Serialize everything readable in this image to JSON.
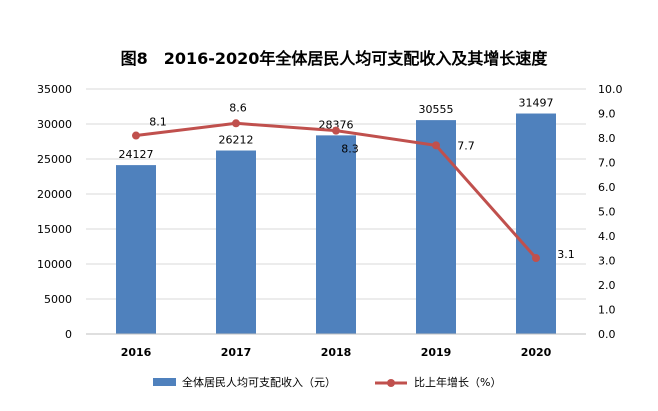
{
  "chart_data": {
    "type": "bar",
    "title": "图8　2016-2020年全体居民人均可支配收入及其增长速度",
    "categories": [
      "2016",
      "2017",
      "2018",
      "2019",
      "2020"
    ],
    "series": [
      {
        "name": "全体居民人均可支配收入（元）",
        "type": "bar",
        "axis": "left",
        "values": [
          24127,
          26212,
          28376,
          30555,
          31497
        ],
        "color": "#4f81bd"
      },
      {
        "name": "比上年增长（%）",
        "type": "line",
        "axis": "right",
        "values": [
          8.1,
          8.6,
          8.3,
          7.7,
          3.1
        ],
        "value_labels": [
          "8.1",
          "8.6",
          "8.3",
          "7.7",
          "3.1"
        ],
        "color": "#c0504d"
      }
    ],
    "y_left": {
      "lim": [
        0,
        35000
      ],
      "ticks": [
        "0",
        "5000",
        "10000",
        "15000",
        "20000",
        "25000",
        "30000",
        "35000"
      ]
    },
    "y_right": {
      "lim": [
        0,
        10
      ],
      "ticks": [
        "0.0",
        "1.0",
        "2.0",
        "3.0",
        "4.0",
        "5.0",
        "6.0",
        "7.0",
        "8.0",
        "9.0",
        "10.0"
      ]
    },
    "grid": true,
    "legend": "bottom"
  }
}
